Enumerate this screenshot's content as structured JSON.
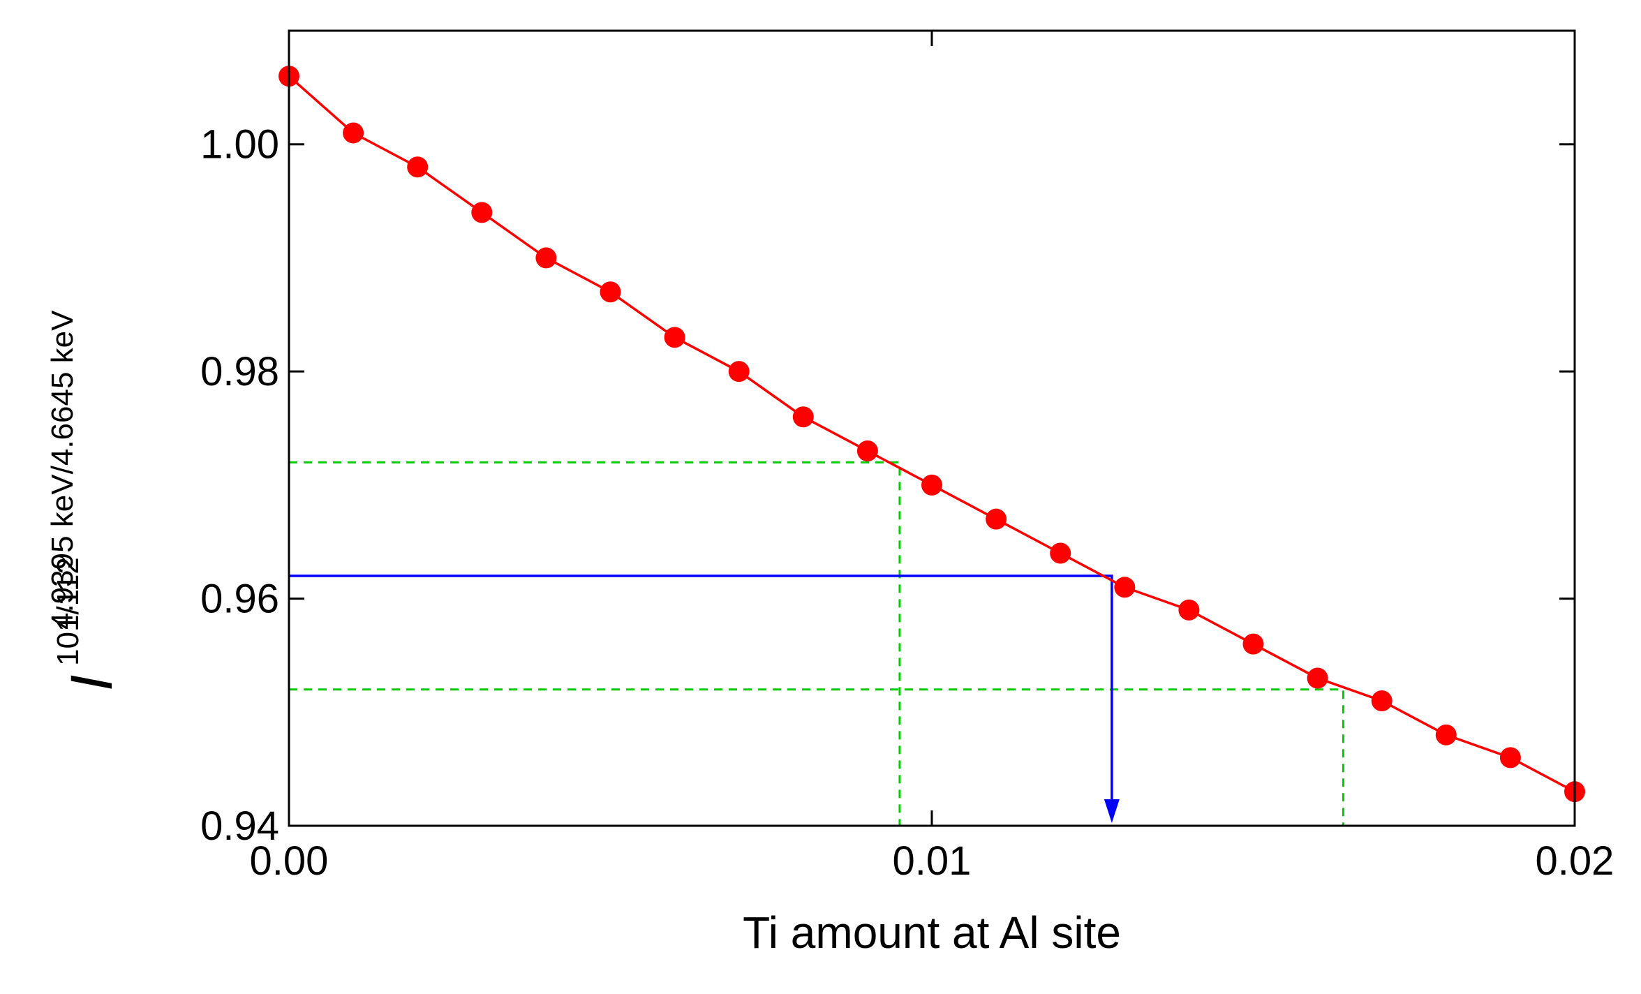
{
  "chart_data": {
    "type": "line",
    "xlabel": "Ti amount at Al site",
    "ylabel": {
      "symbol": "I",
      "superscript": "101/112",
      "subscript": "4.9395 keV/4.6645 keV"
    },
    "xlim": [
      0.0,
      0.02
    ],
    "ylim": [
      0.94,
      1.01
    ],
    "x_ticks": [
      0.0,
      0.01,
      0.02
    ],
    "x_tick_labels": [
      "0.00",
      "0.01",
      "0.02"
    ],
    "y_ticks": [
      0.94,
      0.96,
      0.98,
      1.0
    ],
    "y_tick_labels": [
      "0.94",
      "0.96",
      "0.98",
      "1.00"
    ],
    "grid": false,
    "series": [
      {
        "color": "#ff0000",
        "marker": "circle",
        "x": [
          0.0,
          0.001,
          0.002,
          0.003,
          0.004,
          0.005,
          0.006,
          0.007,
          0.008,
          0.009,
          0.01,
          0.011,
          0.012,
          0.013,
          0.014,
          0.015,
          0.016,
          0.017,
          0.018,
          0.019,
          0.02
        ],
        "y": [
          1.006,
          1.001,
          0.998,
          0.994,
          0.99,
          0.987,
          0.983,
          0.98,
          0.976,
          0.973,
          0.97,
          0.967,
          0.964,
          0.961,
          0.959,
          0.956,
          0.953,
          0.951,
          0.948,
          0.946,
          0.943
        ]
      }
    ],
    "reference_lines": [
      {
        "kind": "dashed-guide",
        "color": "#00cc00",
        "y": 0.972,
        "x": 0.0095
      },
      {
        "kind": "dashed-guide",
        "color": "#00cc00",
        "y": 0.952,
        "x": 0.0164
      },
      {
        "kind": "arrow-guide",
        "color": "#0000ff",
        "y": 0.962,
        "x": 0.0128
      }
    ]
  }
}
